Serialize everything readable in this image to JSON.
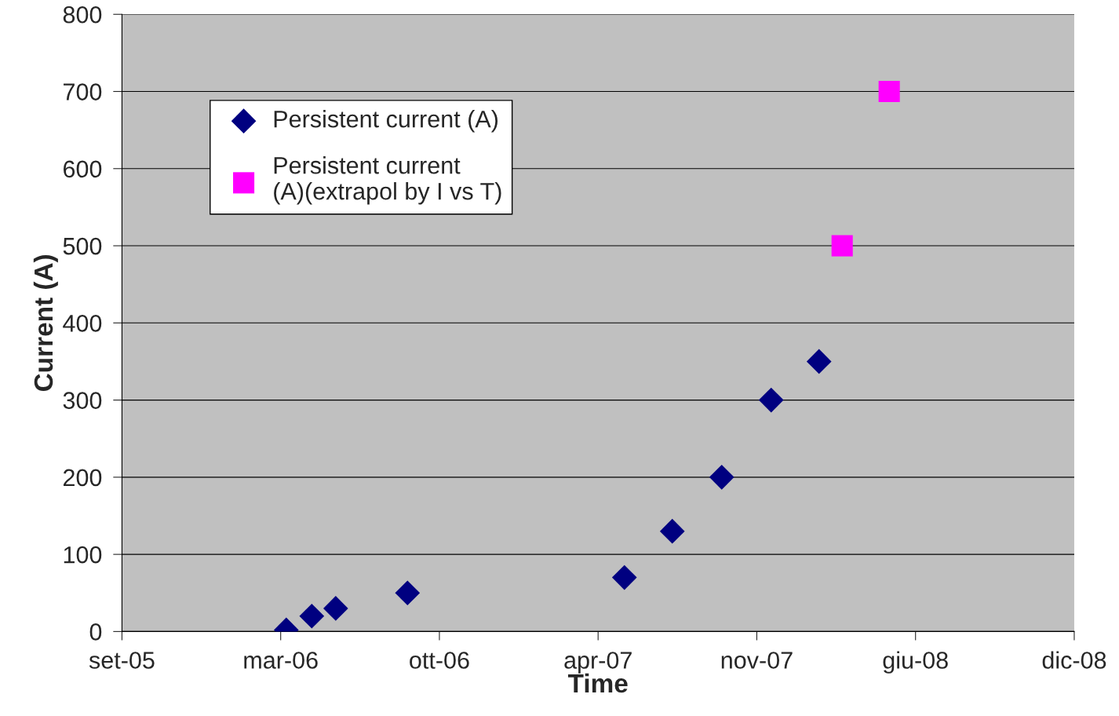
{
  "chart_data": {
    "type": "scatter",
    "xlabel": "Time",
    "ylabel": "Current (A)",
    "series": [
      {
        "name": "Persistent current (A)",
        "color": "#000080",
        "marker": "diamond",
        "x": [
          "2006-04-04",
          "2006-05-06",
          "2006-06-05",
          "2006-09-03",
          "2007-06-02",
          "2007-08-01",
          "2007-10-02",
          "2007-12-03",
          "2008-02-01"
        ],
        "values": [
          2,
          20,
          30,
          50,
          70,
          130,
          200,
          300,
          350
        ]
      },
      {
        "name": "Persistent current\n(A)(extrapol by I vs T)",
        "color": "#ff00ff",
        "marker": "square",
        "x": [
          "2008-03-01",
          "2008-04-29"
        ],
        "values": [
          500,
          700
        ]
      }
    ],
    "xlim": [
      "2005-09-10",
      "2008-12-17"
    ],
    "xticks": [
      {
        "value": "2005-09-10",
        "label": "set-05"
      },
      {
        "value": "2006-03-28",
        "label": "mar-06"
      },
      {
        "value": "2006-10-13",
        "label": "ott-06"
      },
      {
        "value": "2007-04-30",
        "label": "apr-07"
      },
      {
        "value": "2007-11-15",
        "label": "nov-07"
      },
      {
        "value": "2008-06-01",
        "label": "giu-08"
      },
      {
        "value": "2008-12-17",
        "label": "dic-08"
      }
    ],
    "ylim": [
      0,
      800
    ],
    "yticks": [
      0,
      100,
      200,
      300,
      400,
      500,
      600,
      700,
      800
    ],
    "grid": "y",
    "legend": "top left"
  }
}
